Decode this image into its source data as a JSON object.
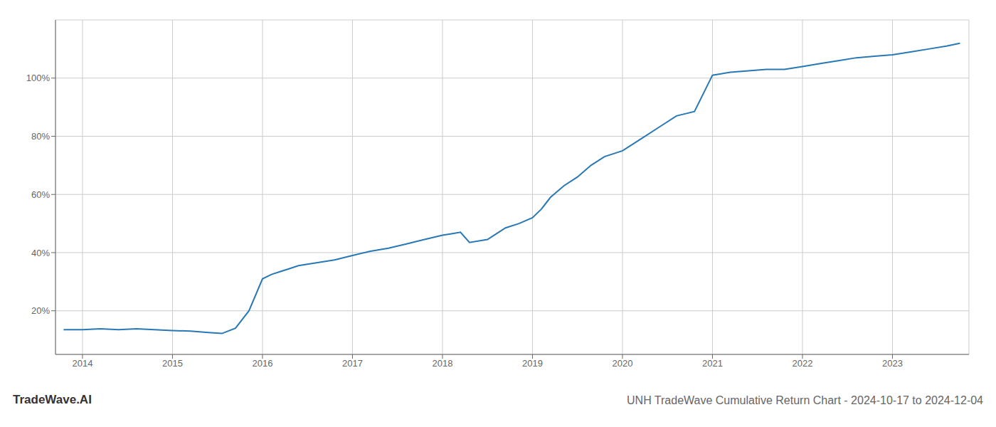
{
  "chart_data": {
    "type": "line",
    "title": "UNH TradeWave Cumulative Return Chart - 2024-10-17 to 2024-12-04",
    "annotations": [
      "TradeWave.AI"
    ],
    "color": "#2878b5",
    "grid": true,
    "x": [
      2013.79,
      2014.0,
      2014.2,
      2014.4,
      2014.6,
      2014.8,
      2015.0,
      2015.2,
      2015.4,
      2015.55,
      2015.7,
      2015.85,
      2016.0,
      2016.1,
      2016.2,
      2016.3,
      2016.4,
      2016.6,
      2016.8,
      2017.0,
      2017.2,
      2017.4,
      2017.6,
      2017.8,
      2018.0,
      2018.1,
      2018.2,
      2018.3,
      2018.5,
      2018.6,
      2018.7,
      2018.85,
      2019.0,
      2019.1,
      2019.2,
      2019.35,
      2019.5,
      2019.65,
      2019.8,
      2020.0,
      2020.2,
      2020.4,
      2020.6,
      2020.8,
      2021.0,
      2021.2,
      2021.4,
      2021.6,
      2021.8,
      2022.0,
      2022.2,
      2022.4,
      2022.6,
      2022.8,
      2023.0,
      2023.2,
      2023.4,
      2023.6,
      2023.75
    ],
    "values": [
      13.5,
      13.5,
      13.8,
      13.5,
      13.8,
      13.5,
      13.2,
      13.0,
      12.5,
      12.2,
      14.0,
      20.0,
      31.0,
      32.5,
      33.5,
      34.5,
      35.5,
      36.5,
      37.5,
      39.0,
      40.5,
      41.5,
      43.0,
      44.5,
      46.0,
      46.5,
      47.0,
      43.5,
      44.5,
      46.5,
      48.5,
      50.0,
      52.0,
      55.0,
      59.0,
      63.0,
      66.0,
      70.0,
      73.0,
      75.0,
      79.0,
      83.0,
      87.0,
      88.5,
      101.0,
      102.0,
      102.5,
      103.0,
      103.0,
      104.0,
      105.0,
      106.0,
      107.0,
      107.5,
      108.0,
      109.0,
      110.0,
      111.0,
      112.0
    ],
    "xlim": [
      2013.7,
      2023.85
    ],
    "ylim": [
      5,
      120
    ],
    "xticks": [
      2014,
      2015,
      2016,
      2017,
      2018,
      2019,
      2020,
      2021,
      2022,
      2023
    ],
    "yticks": [
      {
        "value": 20,
        "label": "20%"
      },
      {
        "value": 40,
        "label": "40%"
      },
      {
        "value": 60,
        "label": "60%"
      },
      {
        "value": 80,
        "label": "80%"
      },
      {
        "value": 100,
        "label": "100%"
      }
    ]
  }
}
